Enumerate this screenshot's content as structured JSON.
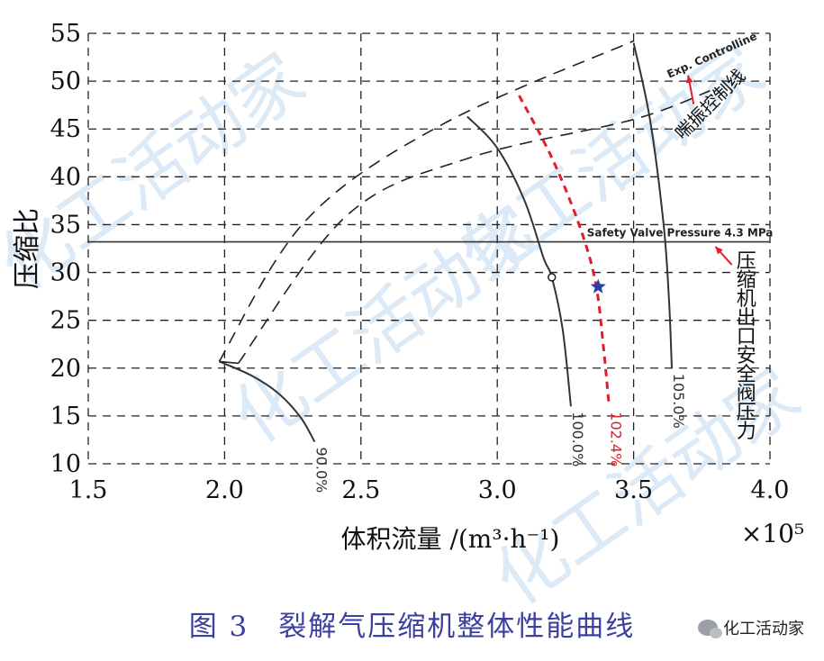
{
  "watermark_text": "化工活动家",
  "caption": "图 3　裂解气压缩机整体性能曲线",
  "wechat_label": "化工活动家",
  "chart_data": {
    "type": "line",
    "ylabel": "压缩比",
    "xlabel": "体积流量 /(m³·h⁻¹)",
    "x_multiplier": "×10⁵",
    "xlim": [
      1.5,
      4.0
    ],
    "ylim": [
      10,
      55
    ],
    "x_ticks": [
      "1.5",
      "2.0",
      "2.5",
      "3.0",
      "3.5",
      "4.0"
    ],
    "y_ticks": [
      "10",
      "15",
      "20",
      "25",
      "30",
      "35",
      "40",
      "45",
      "50",
      "55"
    ],
    "grid": true,
    "speed_lines": [
      {
        "name": "90.0%",
        "color": "#333333",
        "dashed": false,
        "points": [
          [
            1.98,
            20.7
          ],
          [
            2.1,
            19.2
          ],
          [
            2.2,
            17.3
          ],
          [
            2.28,
            14.8
          ],
          [
            2.33,
            12.3
          ]
        ]
      },
      {
        "name": "100.0%",
        "color": "#333333",
        "dashed": false,
        "points": [
          [
            2.89,
            46.3
          ],
          [
            3.0,
            43.0
          ],
          [
            3.1,
            37.5
          ],
          [
            3.17,
            31.5
          ],
          [
            3.2,
            29.5
          ],
          [
            3.24,
            24.0
          ],
          [
            3.27,
            16.0
          ]
        ]
      },
      {
        "name": "102.4%",
        "color": "#e01e2a",
        "dashed": true,
        "points": [
          [
            3.08,
            48.5
          ],
          [
            3.2,
            42.0
          ],
          [
            3.3,
            35.0
          ],
          [
            3.36,
            29.0
          ],
          [
            3.39,
            22.0
          ],
          [
            3.41,
            16.0
          ]
        ]
      },
      {
        "name": "105.0%",
        "color": "#333333",
        "dashed": false,
        "points": [
          [
            3.5,
            54.0
          ],
          [
            3.56,
            46.0
          ],
          [
            3.61,
            35.0
          ],
          [
            3.63,
            27.0
          ],
          [
            3.64,
            20.0
          ]
        ]
      }
    ],
    "surge_line": {
      "label": "Exp. Controlline",
      "points": [
        [
          1.98,
          20.7
        ],
        [
          2.3,
          35.5
        ],
        [
          2.8,
          45.5
        ],
        [
          3.5,
          54.2
        ]
      ]
    },
    "control_line": {
      "label": "喘振控制线",
      "points": [
        [
          2.05,
          20.5
        ],
        [
          2.45,
          36.0
        ],
        [
          2.9,
          42.0
        ],
        [
          3.5,
          46.0
        ],
        [
          3.78,
          49.0
        ]
      ]
    },
    "safety_line": {
      "label": "Safety Valve Pressure 4.3 MPa",
      "y": 33.2
    },
    "safety_annotation": "压缩机出口安全阀压力",
    "operating_point_star": {
      "x": 3.37,
      "y": 28.5
    },
    "marker_point": {
      "x": 3.2,
      "y": 29.5
    }
  }
}
